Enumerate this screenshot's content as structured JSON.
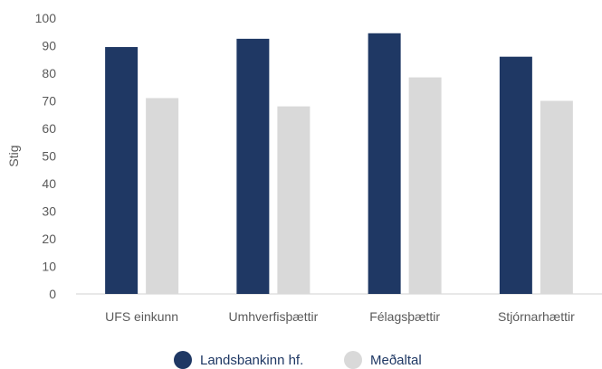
{
  "chart_data": {
    "type": "bar",
    "title": "",
    "xlabel": "",
    "ylabel": "Stig",
    "ylim": [
      0,
      100
    ],
    "yticks": [
      0,
      10,
      20,
      30,
      40,
      50,
      60,
      70,
      80,
      90,
      100
    ],
    "categories": [
      "UFS einkunn",
      "Umhverfisþættir",
      "Félagsþættir",
      "Stjórnarhættir"
    ],
    "series": [
      {
        "name": "Landsbankinn hf.",
        "color": "#1f3864",
        "values": [
          89.5,
          92.5,
          94.5,
          86
        ]
      },
      {
        "name": "Meðaltal",
        "color": "#d9d9d9",
        "values": [
          71,
          68,
          78.5,
          70
        ]
      }
    ],
    "grid": false,
    "legend_position": "bottom"
  }
}
